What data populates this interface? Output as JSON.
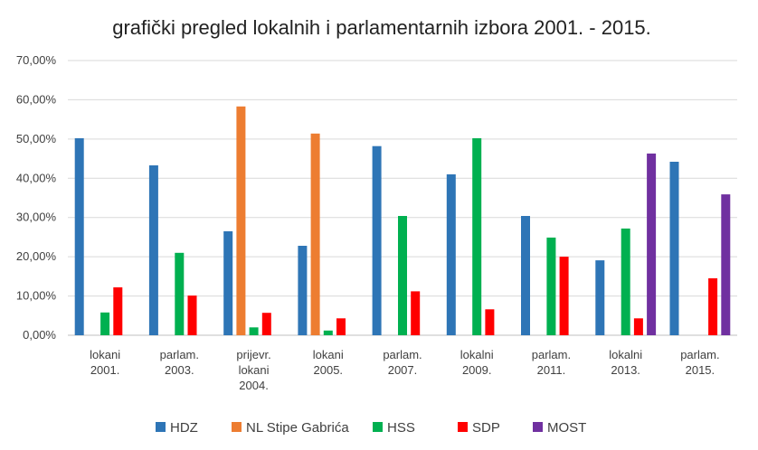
{
  "chart_data": {
    "type": "bar",
    "title": "grafički pregled lokalnih i parlamentarnih izbora 2001. - 2015.",
    "xlabel": "",
    "ylabel": "",
    "ylim": [
      0,
      70
    ],
    "y_tick_step": 10,
    "y_tick_labels": [
      "0,00%",
      "10,00%",
      "20,00%",
      "30,00%",
      "40,00%",
      "50,00%",
      "60,00%",
      "70,00%"
    ],
    "grid": true,
    "legend_position": "bottom",
    "categories": [
      [
        "lokani",
        "2001."
      ],
      [
        "parlam.",
        "2003."
      ],
      [
        "prijevr.",
        "lokani",
        "2004."
      ],
      [
        "lokani",
        "2005."
      ],
      [
        "parlam.",
        "2007."
      ],
      [
        "lokalni",
        "2009."
      ],
      [
        "parlam.",
        "2011."
      ],
      [
        "lokalni",
        "2013."
      ],
      [
        "parlam.",
        "2015."
      ]
    ],
    "series": [
      {
        "name": "HDZ",
        "color": "#2e75b6",
        "values": [
          50.2,
          43.3,
          26.5,
          22.8,
          48.2,
          41.0,
          30.4,
          19.1,
          44.2
        ]
      },
      {
        "name": "NL Stipe Gabrića",
        "color": "#ed7d31",
        "values": [
          null,
          null,
          58.3,
          51.4,
          null,
          null,
          null,
          null,
          null
        ]
      },
      {
        "name": "HSS",
        "color": "#00b050",
        "values": [
          5.8,
          21.0,
          2.0,
          1.2,
          30.4,
          50.2,
          24.9,
          27.2,
          null
        ]
      },
      {
        "name": "SDP",
        "color": "#ff0000",
        "values": [
          12.2,
          10.1,
          5.7,
          4.3,
          11.2,
          6.6,
          20.0,
          4.3,
          14.5
        ]
      },
      {
        "name": "MOST",
        "color": "#7030a0",
        "values": [
          null,
          null,
          null,
          null,
          null,
          null,
          null,
          46.3,
          35.9
        ]
      }
    ]
  }
}
